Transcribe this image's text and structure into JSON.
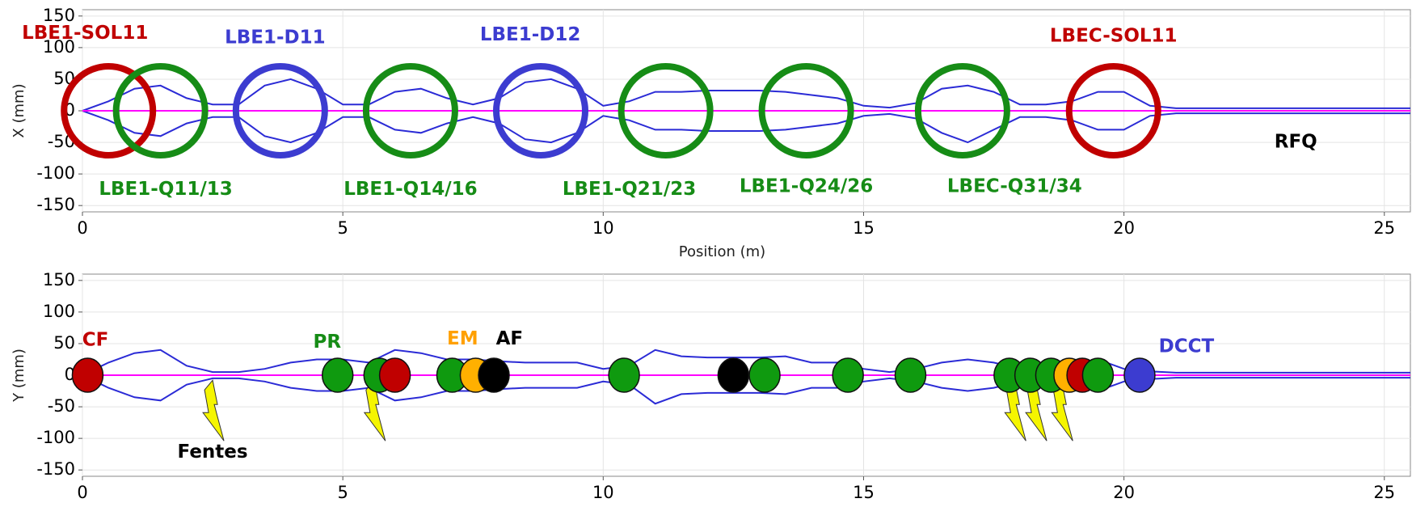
{
  "chart_data": [
    {
      "type": "line",
      "ylabel": "X (mm)",
      "xlabel": "Position (m)",
      "xlim": [
        0,
        25.5
      ],
      "xticks": [
        0,
        5,
        10,
        15,
        20,
        25
      ],
      "ylim": [
        -160,
        160
      ],
      "yticks": [
        -150,
        -100,
        -50,
        0,
        50,
        100,
        150
      ],
      "x": [
        0,
        0.5,
        1,
        1.5,
        2,
        2.5,
        3,
        3.5,
        4,
        4.5,
        5,
        5.5,
        6,
        6.5,
        7,
        7.5,
        8,
        8.5,
        9,
        9.5,
        10,
        10.5,
        11,
        11.5,
        12,
        12.5,
        13,
        13.5,
        14,
        14.5,
        15,
        15.5,
        16,
        16.5,
        17,
        17.5,
        18,
        18.5,
        19,
        19.5,
        20,
        20.5,
        21,
        21.5,
        22,
        22.5,
        23,
        23.5,
        24,
        24.5,
        25,
        25.5
      ],
      "series": [
        {
          "color": "#2b2bd6",
          "values": [
            0,
            15,
            35,
            40,
            20,
            10,
            10,
            40,
            50,
            35,
            10,
            10,
            30,
            35,
            20,
            10,
            20,
            45,
            50,
            35,
            8,
            15,
            30,
            30,
            32,
            32,
            32,
            30,
            25,
            20,
            8,
            5,
            12,
            35,
            40,
            30,
            10,
            10,
            15,
            30,
            30,
            8,
            4,
            4,
            4,
            4,
            4,
            4,
            4,
            4,
            4,
            4
          ]
        },
        {
          "color": "#2b2bd6",
          "values": [
            0,
            -15,
            -35,
            -40,
            -20,
            -10,
            -10,
            -40,
            -50,
            -35,
            -10,
            -10,
            -30,
            -35,
            -20,
            -10,
            -20,
            -45,
            -50,
            -35,
            -8,
            -15,
            -30,
            -30,
            -32,
            -32,
            -32,
            -30,
            -25,
            -20,
            -8,
            -5,
            -12,
            -35,
            -50,
            -30,
            -10,
            -10,
            -15,
            -30,
            -30,
            -8,
            -4,
            -4,
            -4,
            -4,
            -4,
            -4,
            -4,
            -4,
            -4,
            -4
          ]
        },
        {
          "color": "#ff00ff",
          "values": [
            0,
            0,
            0,
            0,
            0,
            0,
            0,
            0,
            0,
            0,
            0,
            0,
            0,
            0,
            0,
            0,
            0,
            0,
            0,
            0,
            0,
            0,
            0,
            0,
            0,
            0,
            0,
            0,
            0,
            0,
            0,
            0,
            0,
            0,
            0,
            0,
            0,
            0,
            0,
            0,
            0,
            0,
            0,
            0,
            0,
            0,
            0,
            0,
            0,
            0,
            0,
            0
          ]
        }
      ],
      "rings": [
        {
          "x": 0.5,
          "color": "#c00000"
        },
        {
          "x": 1.5,
          "color": "#168c16"
        },
        {
          "x": 3.8,
          "color": "#3c3cd0"
        },
        {
          "x": 6.3,
          "color": "#168c16"
        },
        {
          "x": 8.8,
          "color": "#3c3cd0"
        },
        {
          "x": 11.2,
          "color": "#168c16"
        },
        {
          "x": 13.9,
          "color": "#168c16"
        },
        {
          "x": 16.9,
          "color": "#168c16"
        },
        {
          "x": 19.8,
          "color": "#c00000"
        }
      ],
      "annotations": [
        {
          "text": "LBE1-SOL11",
          "x": 0.05,
          "y": 122,
          "color": "#c00000"
        },
        {
          "text": "LBE1-D11",
          "x": 3.7,
          "y": 115,
          "color": "#3c3cd0"
        },
        {
          "text": "LBE1-D12",
          "x": 8.6,
          "y": 120,
          "color": "#3c3cd0"
        },
        {
          "text": "LBEC-SOL11",
          "x": 19.8,
          "y": 118,
          "color": "#c00000"
        },
        {
          "text": "LBE1-Q11/13",
          "x": 1.6,
          "y": -125,
          "color": "#168c16"
        },
        {
          "text": "LBE1-Q14/16",
          "x": 6.3,
          "y": -125,
          "color": "#168c16"
        },
        {
          "text": "LBE1-Q21/23",
          "x": 10.5,
          "y": -125,
          "color": "#168c16"
        },
        {
          "text": "LBE1-Q24/26",
          "x": 13.9,
          "y": -120,
          "color": "#168c16"
        },
        {
          "text": "LBEC-Q31/34",
          "x": 17.9,
          "y": -120,
          "color": "#168c16"
        },
        {
          "text": "RFQ",
          "x": 23.3,
          "y": -50,
          "color": "#000000"
        }
      ]
    },
    {
      "type": "line",
      "ylabel": "Y (mm)",
      "xlim": [
        0,
        25.5
      ],
      "xticks": [
        0,
        5,
        10,
        15,
        20,
        25
      ],
      "ylim": [
        -160,
        160
      ],
      "yticks": [
        -150,
        -100,
        -50,
        0,
        50,
        100,
        150
      ],
      "x": [
        0,
        0.5,
        1,
        1.5,
        2,
        2.5,
        3,
        3.5,
        4,
        4.5,
        5,
        5.5,
        6,
        6.5,
        7,
        7.5,
        8,
        8.5,
        9,
        9.5,
        10,
        10.5,
        11,
        11.5,
        12,
        12.5,
        13,
        13.5,
        14,
        14.5,
        15,
        15.5,
        16,
        16.5,
        17,
        17.5,
        18,
        18.5,
        19,
        19.5,
        20,
        20.5,
        21,
        21.5,
        22,
        22.5,
        23,
        23.5,
        24,
        24.5,
        25,
        25.5
      ],
      "series": [
        {
          "color": "#2b2bd6",
          "values": [
            0,
            20,
            35,
            40,
            15,
            5,
            5,
            10,
            20,
            25,
            25,
            20,
            40,
            35,
            25,
            25,
            22,
            20,
            20,
            20,
            10,
            15,
            40,
            30,
            28,
            28,
            28,
            30,
            20,
            20,
            10,
            5,
            10,
            20,
            25,
            20,
            10,
            10,
            15,
            25,
            10,
            6,
            4,
            4,
            4,
            4,
            4,
            4,
            4,
            4,
            4,
            4
          ]
        },
        {
          "color": "#2b2bd6",
          "values": [
            0,
            -20,
            -35,
            -40,
            -15,
            -5,
            -5,
            -10,
            -20,
            -25,
            -25,
            -20,
            -40,
            -35,
            -25,
            -25,
            -22,
            -20,
            -20,
            -20,
            -10,
            -15,
            -45,
            -30,
            -28,
            -28,
            -28,
            -30,
            -20,
            -20,
            -10,
            -5,
            -10,
            -20,
            -25,
            -20,
            -10,
            -10,
            -15,
            -25,
            -10,
            -6,
            -4,
            -4,
            -4,
            -4,
            -4,
            -4,
            -4,
            -4,
            -4,
            -4
          ]
        },
        {
          "color": "#ff00ff",
          "values": [
            0,
            0,
            0,
            0,
            0,
            0,
            0,
            0,
            0,
            0,
            0,
            0,
            0,
            0,
            0,
            0,
            0,
            0,
            0,
            0,
            0,
            0,
            0,
            0,
            0,
            0,
            0,
            0,
            0,
            0,
            0,
            0,
            0,
            0,
            0,
            0,
            0,
            0,
            0,
            0,
            0,
            0,
            0,
            0,
            0,
            0,
            0,
            0,
            0,
            0,
            0,
            0
          ]
        }
      ],
      "markers": [
        {
          "x": 0.1,
          "color": "#c00000"
        },
        {
          "x": 4.9,
          "color": "#0f9a0f"
        },
        {
          "x": 5.7,
          "color": "#0f9a0f"
        },
        {
          "x": 6.0,
          "color": "#c00000"
        },
        {
          "x": 7.1,
          "color": "#0f9a0f"
        },
        {
          "x": 7.55,
          "color": "#ffb000"
        },
        {
          "x": 7.9,
          "color": "#000000"
        },
        {
          "x": 10.4,
          "color": "#0f9a0f"
        },
        {
          "x": 12.5,
          "color": "#000000"
        },
        {
          "x": 13.1,
          "color": "#0f9a0f"
        },
        {
          "x": 14.7,
          "color": "#0f9a0f"
        },
        {
          "x": 15.9,
          "color": "#0f9a0f"
        },
        {
          "x": 17.8,
          "color": "#0f9a0f"
        },
        {
          "x": 18.2,
          "color": "#0f9a0f"
        },
        {
          "x": 18.6,
          "color": "#0f9a0f"
        },
        {
          "x": 18.95,
          "color": "#ffb000"
        },
        {
          "x": 19.2,
          "color": "#c00000"
        },
        {
          "x": 19.5,
          "color": "#0f9a0f"
        },
        {
          "x": 20.3,
          "color": "#3c3cd0"
        }
      ],
      "flashes": [
        2.5,
        5.6,
        17.9,
        18.3,
        18.8
      ],
      "annotations": [
        {
          "text": "CF",
          "x": 0.25,
          "y": 55,
          "color": "#c00000"
        },
        {
          "text": "PR",
          "x": 4.7,
          "y": 52,
          "color": "#168c16"
        },
        {
          "text": "EM",
          "x": 7.3,
          "y": 57,
          "color": "#ffa000"
        },
        {
          "text": "AF",
          "x": 8.2,
          "y": 57,
          "color": "#000000"
        },
        {
          "text": "DCCT",
          "x": 21.2,
          "y": 45,
          "color": "#3c3cd0"
        },
        {
          "text": "Fentes",
          "x": 2.5,
          "y": -122,
          "color": "#000000"
        }
      ]
    }
  ]
}
